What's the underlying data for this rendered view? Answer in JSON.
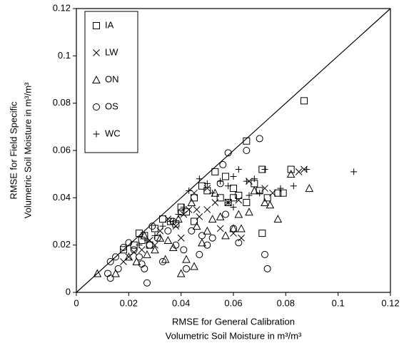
{
  "chart_data": {
    "type": "scatter",
    "x_label": [
      "RMSE for General Calibration",
      "Volumetric Soil Moisture in m³/m³"
    ],
    "y_label": [
      "RMSE for Field Specific",
      "Volumetric Soil Moisture in m³/m³"
    ],
    "xlim": [
      0,
      0.12
    ],
    "ylim": [
      0,
      0.12
    ],
    "xticks": [
      0,
      0.02,
      0.04,
      0.06,
      0.08,
      0.1,
      0.12
    ],
    "yticks": [
      0,
      0.02,
      0.04,
      0.06,
      0.08,
      0.1,
      0.12
    ],
    "grid": false,
    "legend": "upper left",
    "series": [
      {
        "name": "IA",
        "marker": "square",
        "color": "#000000",
        "x": [
          0.087,
          0.065,
          0.053,
          0.082,
          0.071,
          0.071,
          0.079,
          0.077,
          0.073,
          0.018,
          0.022,
          0.025,
          0.03,
          0.033,
          0.036,
          0.038,
          0.04,
          0.042,
          0.045,
          0.048,
          0.05,
          0.055,
          0.057,
          0.06,
          0.062,
          0.065,
          0.068,
          0.024,
          0.026,
          0.028,
          0.058,
          0.045,
          0.06,
          0.07
        ],
        "values": [
          0.081,
          0.064,
          0.051,
          0.052,
          0.052,
          0.025,
          0.042,
          0.042,
          0.04,
          0.018,
          0.02,
          0.022,
          0.027,
          0.031,
          0.03,
          0.029,
          0.036,
          0.034,
          0.04,
          0.045,
          0.043,
          0.04,
          0.049,
          0.04,
          0.041,
          0.038,
          0.046,
          0.025,
          0.024,
          0.02,
          0.038,
          0.03,
          0.044,
          0.043
        ]
      },
      {
        "name": "LW",
        "marker": "x",
        "color": "#000000",
        "x": [
          0.085,
          0.087,
          0.062,
          0.063,
          0.06,
          0.055,
          0.05,
          0.046,
          0.045,
          0.043,
          0.041,
          0.038,
          0.035,
          0.032,
          0.03,
          0.028,
          0.025,
          0.022,
          0.02,
          0.018,
          0.05,
          0.053,
          0.058,
          0.066,
          0.072,
          0.075,
          0.04,
          0.047
        ],
        "values": [
          0.051,
          0.052,
          0.039,
          0.023,
          0.025,
          0.027,
          0.035,
          0.035,
          0.042,
          0.035,
          0.033,
          0.028,
          0.031,
          0.026,
          0.02,
          0.022,
          0.018,
          0.017,
          0.015,
          0.013,
          0.044,
          0.038,
          0.038,
          0.047,
          0.044,
          0.042,
          0.023,
          0.032
        ]
      },
      {
        "name": "ON",
        "marker": "triangle",
        "color": "#000000",
        "x": [
          0.008,
          0.015,
          0.02,
          0.023,
          0.027,
          0.03,
          0.032,
          0.035,
          0.037,
          0.04,
          0.042,
          0.045,
          0.048,
          0.05,
          0.052,
          0.055,
          0.057,
          0.06,
          0.063,
          0.066,
          0.068,
          0.074,
          0.077,
          0.082,
          0.089,
          0.046,
          0.044,
          0.039,
          0.034,
          0.026,
          0.053,
          0.062,
          0.072
        ],
        "values": [
          0.008,
          0.008,
          0.015,
          0.013,
          0.016,
          0.018,
          0.023,
          0.022,
          0.019,
          0.008,
          0.014,
          0.011,
          0.021,
          0.026,
          0.031,
          0.032,
          0.024,
          0.027,
          0.027,
          0.034,
          0.043,
          0.037,
          0.031,
          0.05,
          0.044,
          0.028,
          0.038,
          0.031,
          0.014,
          0.024,
          0.042,
          0.033,
          0.038
        ]
      },
      {
        "name": "OS",
        "marker": "circle",
        "color": "#000000",
        "x": [
          0.012,
          0.013,
          0.013,
          0.015,
          0.016,
          0.018,
          0.02,
          0.022,
          0.025,
          0.026,
          0.027,
          0.028,
          0.029,
          0.031,
          0.033,
          0.035,
          0.037,
          0.04,
          0.041,
          0.042,
          0.044,
          0.047,
          0.048,
          0.05,
          0.052,
          0.055,
          0.057,
          0.058,
          0.06,
          0.062,
          0.065,
          0.07,
          0.072,
          0.073,
          0.056,
          0.038,
          0.024
        ],
        "values": [
          0.008,
          0.006,
          0.013,
          0.015,
          0.01,
          0.019,
          0.021,
          0.018,
          0.012,
          0.01,
          0.004,
          0.02,
          0.028,
          0.023,
          0.013,
          0.026,
          0.03,
          0.034,
          0.018,
          0.01,
          0.026,
          0.016,
          0.024,
          0.02,
          0.023,
          0.046,
          0.033,
          0.059,
          0.027,
          0.021,
          0.06,
          0.065,
          0.016,
          0.01,
          0.054,
          0.02,
          0.015
        ]
      },
      {
        "name": "WC",
        "marker": "plus",
        "color": "#000000",
        "x": [
          0.106,
          0.088,
          0.083,
          0.078,
          0.072,
          0.07,
          0.065,
          0.062,
          0.06,
          0.058,
          0.055,
          0.052,
          0.05,
          0.047,
          0.043,
          0.041,
          0.039,
          0.036,
          0.033,
          0.03,
          0.027,
          0.024,
          0.058,
          0.06,
          0.066,
          0.068
        ],
        "values": [
          0.051,
          0.052,
          0.045,
          0.044,
          0.052,
          0.042,
          0.047,
          0.052,
          0.049,
          0.045,
          0.047,
          0.042,
          0.046,
          0.048,
          0.043,
          0.036,
          0.033,
          0.03,
          0.028,
          0.024,
          0.022,
          0.02,
          0.038,
          0.036,
          0.041,
          0.048
        ]
      }
    ]
  }
}
